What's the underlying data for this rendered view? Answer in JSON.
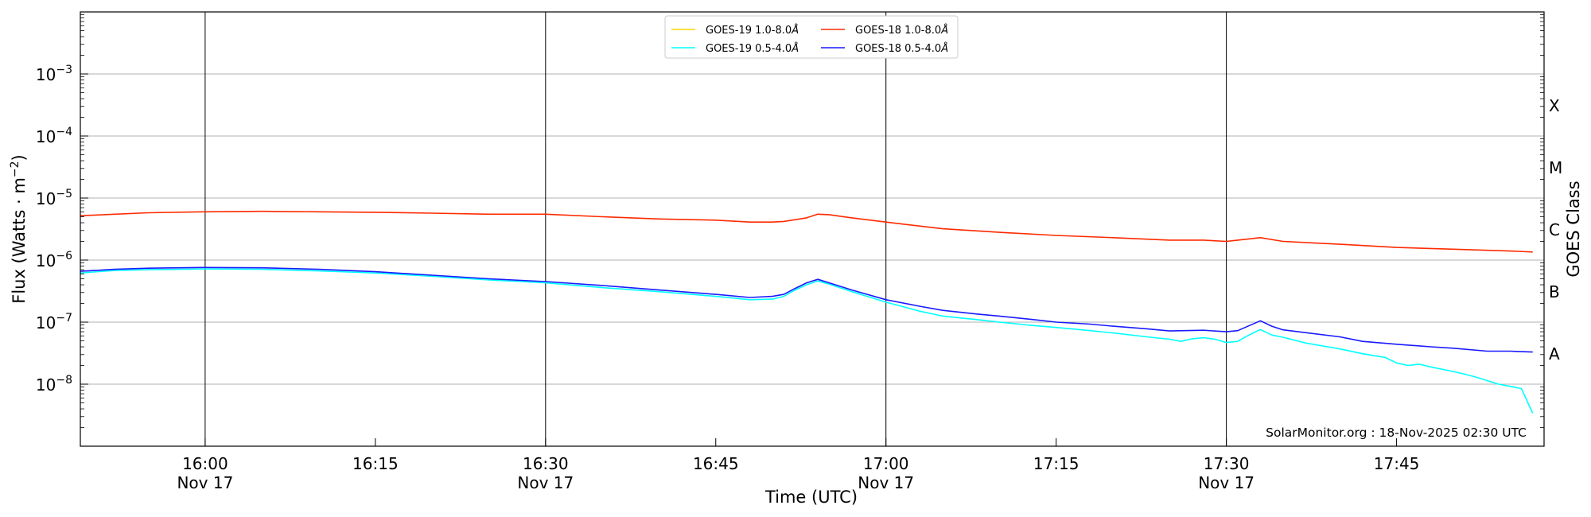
{
  "chart_data": {
    "type": "line",
    "xlabel": "Time (UTC)",
    "ylabel_main": "Flux (Watts · m",
    "ylabel_sup": "−2",
    "ylabel_close": ")",
    "y2label": "GOES Class",
    "credit": "SolarMonitor.org : 18-Nov-2025 02:30 UTC",
    "y_scale": "log",
    "ylim": [
      1e-09,
      0.01
    ],
    "xlim": [
      "2025-11-17 15:49",
      "2025-11-17 17:58"
    ],
    "grid": "horizontal at decades, vertical at half-hours",
    "legend_position": "top-center",
    "y_ticks": [
      {
        "exp": -8,
        "base": "10",
        "sup": "−8"
      },
      {
        "exp": -7,
        "base": "10",
        "sup": "−7"
      },
      {
        "exp": -6,
        "base": "10",
        "sup": "−6"
      },
      {
        "exp": -5,
        "base": "10",
        "sup": "−5"
      },
      {
        "exp": -4,
        "base": "10",
        "sup": "−4"
      },
      {
        "exp": -3,
        "base": "10",
        "sup": "−3"
      }
    ],
    "x_ticks": [
      {
        "time": "16:00",
        "label": "16:00",
        "date": "Nov 17",
        "gridline": true
      },
      {
        "time": "16:15",
        "label": "16:15",
        "date": "",
        "gridline": false
      },
      {
        "time": "16:30",
        "label": "16:30",
        "date": "Nov 17",
        "gridline": true
      },
      {
        "time": "16:45",
        "label": "16:45",
        "date": "",
        "gridline": false
      },
      {
        "time": "17:00",
        "label": "17:00",
        "date": "Nov 17",
        "gridline": true
      },
      {
        "time": "17:15",
        "label": "17:15",
        "date": "",
        "gridline": false
      },
      {
        "time": "17:30",
        "label": "17:30",
        "date": "Nov 17",
        "gridline": true
      },
      {
        "time": "17:45",
        "label": "17:45",
        "date": "",
        "gridline": false
      }
    ],
    "goes_classes": [
      {
        "label": "A",
        "flux": 1e-08
      },
      {
        "label": "B",
        "flux": 1e-07
      },
      {
        "label": "C",
        "flux": 1e-06
      },
      {
        "label": "M",
        "flux": 1e-05
      },
      {
        "label": "X",
        "flux": 0.0001
      }
    ],
    "series": [
      {
        "name": "GOES-19 1.0-8.0",
        "unit": "Å",
        "color": "#ffd700",
        "x": [],
        "values": []
      },
      {
        "name": "GOES-18 1.0-8.0",
        "unit": "Å",
        "color": "#ff2a00",
        "x": [
          "15:49",
          "15:55",
          "16:00",
          "16:05",
          "16:10",
          "16:15",
          "16:20",
          "16:25",
          "16:30",
          "16:35",
          "16:40",
          "16:45",
          "16:48",
          "16:50",
          "16:51",
          "16:53",
          "16:54",
          "16:55",
          "16:57",
          "17:00",
          "17:05",
          "17:10",
          "17:15",
          "17:20",
          "17:25",
          "17:28",
          "17:30",
          "17:31",
          "17:33",
          "17:35",
          "17:40",
          "17:45",
          "17:50",
          "17:55",
          "17:57"
        ],
        "values": [
          5.2e-06,
          5.8e-06,
          6e-06,
          6.1e-06,
          6e-06,
          5.9e-06,
          5.7e-06,
          5.5e-06,
          5.5e-06,
          5e-06,
          4.6e-06,
          4.4e-06,
          4.1e-06,
          4.1e-06,
          4.2e-06,
          4.8e-06,
          5.5e-06,
          5.4e-06,
          4.8e-06,
          4.1e-06,
          3.2e-06,
          2.8e-06,
          2.5e-06,
          2.3e-06,
          2.1e-06,
          2.1e-06,
          2e-06,
          2.1e-06,
          2.3e-06,
          2e-06,
          1.8e-06,
          1.6e-06,
          1.5e-06,
          1.4e-06,
          1.35e-06
        ]
      },
      {
        "name": "GOES-19 0.5-4.0",
        "unit": "Å",
        "color": "#00ffff",
        "x": [
          "15:49",
          "15:52",
          "15:55",
          "16:00",
          "16:05",
          "16:10",
          "16:15",
          "16:20",
          "16:25",
          "16:30",
          "16:35",
          "16:40",
          "16:45",
          "16:48",
          "16:50",
          "16:51",
          "16:52",
          "16:53",
          "16:54",
          "16:55",
          "16:57",
          "17:00",
          "17:03",
          "17:05",
          "17:08",
          "17:10",
          "17:13",
          "17:15",
          "17:18",
          "17:20",
          "17:23",
          "17:25",
          "17:26",
          "17:27",
          "17:28",
          "17:29",
          "17:30",
          "17:31",
          "17:32",
          "17:33",
          "17:34",
          "17:35",
          "17:37",
          "17:40",
          "17:42",
          "17:44",
          "17:45",
          "17:46",
          "17:47",
          "17:48",
          "17:50",
          "17:51",
          "17:52",
          "17:54",
          "17:56",
          "17:57"
        ],
        "values": [
          6.2e-07,
          6.8e-07,
          7e-07,
          7.2e-07,
          7.1e-07,
          6.7e-07,
          6.2e-07,
          5.5e-07,
          4.8e-07,
          4.3e-07,
          3.6e-07,
          3.1e-07,
          2.6e-07,
          2.3e-07,
          2.35e-07,
          2.6e-07,
          3.3e-07,
          4e-07,
          4.6e-07,
          4.1e-07,
          3.1e-07,
          2.1e-07,
          1.5e-07,
          1.25e-07,
          1.1e-07,
          1e-07,
          8.8e-08,
          8.2e-08,
          7.3e-08,
          6.7e-08,
          5.8e-08,
          5.3e-08,
          4.9e-08,
          5.4e-08,
          5.6e-08,
          5.3e-08,
          4.7e-08,
          4.9e-08,
          6.2e-08,
          7.6e-08,
          6.2e-08,
          5.7e-08,
          4.6e-08,
          3.7e-08,
          3.1e-08,
          2.7e-08,
          2.2e-08,
          2e-08,
          2.1e-08,
          1.9e-08,
          1.6e-08,
          1.45e-08,
          1.3e-08,
          1e-08,
          8.5e-09,
          3.4e-09
        ]
      },
      {
        "name": "GOES-18 0.5-4.0",
        "unit": "Å",
        "color": "#1a1aff",
        "x": [
          "15:49",
          "15:52",
          "15:55",
          "16:00",
          "16:05",
          "16:10",
          "16:15",
          "16:20",
          "16:25",
          "16:30",
          "16:35",
          "16:40",
          "16:45",
          "16:48",
          "16:50",
          "16:51",
          "16:52",
          "16:53",
          "16:54",
          "16:55",
          "16:57",
          "17:00",
          "17:03",
          "17:05",
          "17:08",
          "17:10",
          "17:13",
          "17:15",
          "17:18",
          "17:20",
          "17:23",
          "17:25",
          "17:28",
          "17:30",
          "17:31",
          "17:33",
          "17:34",
          "17:35",
          "17:40",
          "17:42",
          "17:45",
          "17:48",
          "17:50",
          "17:53",
          "17:55",
          "17:57"
        ],
        "values": [
          6.6e-07,
          7.1e-07,
          7.4e-07,
          7.6e-07,
          7.5e-07,
          7.1e-07,
          6.5e-07,
          5.7e-07,
          5e-07,
          4.5e-07,
          3.9e-07,
          3.3e-07,
          2.8e-07,
          2.5e-07,
          2.6e-07,
          2.8e-07,
          3.5e-07,
          4.3e-07,
          4.9e-07,
          4.3e-07,
          3.3e-07,
          2.3e-07,
          1.8e-07,
          1.55e-07,
          1.35e-07,
          1.25e-07,
          1.1e-07,
          1e-07,
          9.3e-08,
          8.6e-08,
          7.8e-08,
          7.2e-08,
          7.4e-08,
          7e-08,
          7.3e-08,
          1.05e-07,
          8.6e-08,
          7.5e-08,
          5.8e-08,
          4.9e-08,
          4.4e-08,
          4e-08,
          3.8e-08,
          3.4e-08,
          3.4e-08,
          3.3e-08
        ]
      }
    ]
  }
}
